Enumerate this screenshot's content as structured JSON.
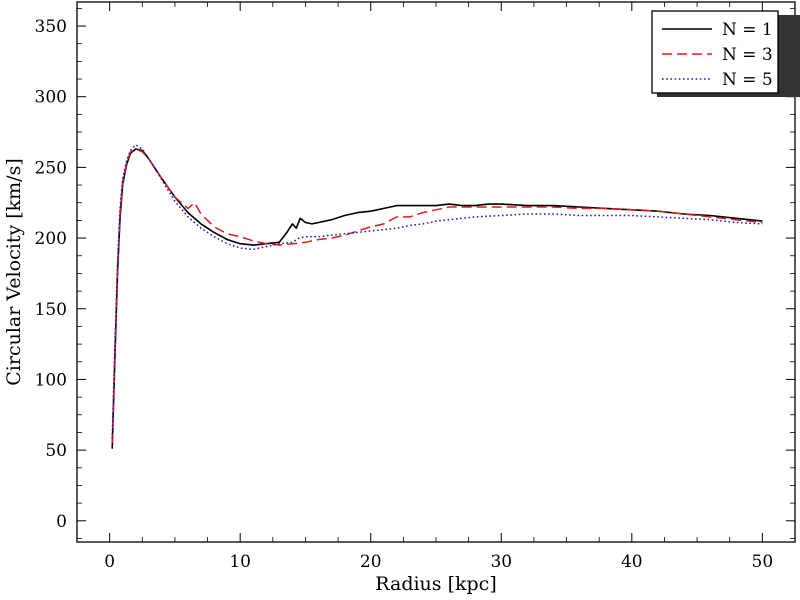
{
  "chart_data": {
    "type": "line",
    "title": "",
    "xlabel": "Radius [kpc]",
    "ylabel": "Circular Velocity [km/s]",
    "xlim": [
      -2.5,
      52.5
    ],
    "ylim": [
      -15,
      367
    ],
    "xticks": [
      0,
      10,
      20,
      30,
      40,
      50
    ],
    "yticks": [
      0,
      50,
      100,
      150,
      200,
      250,
      300,
      350
    ],
    "grid": false,
    "legend_position": "top-right",
    "series": [
      {
        "name": "N = 1",
        "color": "#000000",
        "style": "solid",
        "x": [
          0.2,
          0.4,
          0.6,
          0.8,
          1.0,
          1.3,
          1.6,
          2.0,
          2.5,
          3.0,
          3.5,
          4.0,
          5.0,
          6.0,
          7.0,
          8.0,
          9.0,
          10.0,
          11.0,
          12.0,
          13.0,
          13.5,
          14.0,
          14.3,
          14.6,
          15.0,
          15.5,
          16.0,
          17.0,
          18.0,
          19.0,
          20.0,
          21.0,
          22.0,
          23.0,
          24.0,
          25.0,
          26.0,
          27.0,
          28.0,
          29.0,
          30.0,
          32.0,
          34.0,
          36.0,
          38.0,
          40.0,
          42.0,
          44.0,
          46.0,
          48.0,
          50.0
        ],
        "y": [
          51,
          115,
          175,
          215,
          238,
          252,
          260,
          263,
          262,
          256,
          249,
          242,
          229,
          218,
          210,
          204,
          199,
          196,
          195,
          196,
          197,
          203,
          210,
          207,
          214,
          211,
          210,
          211,
          213,
          216,
          218,
          219,
          221,
          223,
          223,
          223,
          223,
          224,
          223,
          223,
          224,
          224,
          223,
          223,
          222,
          221,
          220,
          219,
          217,
          216,
          214,
          212
        ]
      },
      {
        "name": "N = 3",
        "color": "#e41a1a",
        "style": "dashed",
        "x": [
          0.2,
          0.4,
          0.6,
          0.8,
          1.0,
          1.3,
          1.6,
          2.0,
          2.5,
          3.0,
          3.5,
          4.0,
          5.0,
          6.0,
          6.5,
          7.0,
          8.0,
          9.0,
          10.0,
          11.0,
          12.0,
          13.0,
          14.0,
          15.0,
          16.0,
          17.0,
          18.0,
          19.0,
          20.0,
          21.0,
          22.0,
          23.0,
          24.0,
          25.0,
          26.0,
          27.0,
          28.0,
          30.0,
          32.0,
          34.0,
          36.0,
          38.0,
          40.0,
          42.0,
          44.0,
          46.0,
          48.0,
          50.0
        ],
        "y": [
          55,
          120,
          178,
          218,
          240,
          253,
          261,
          263,
          261,
          256,
          249,
          242,
          229,
          221,
          225,
          217,
          208,
          203,
          201,
          198,
          196,
          195,
          196,
          197,
          199,
          200,
          202,
          205,
          208,
          210,
          215,
          215,
          218,
          220,
          222,
          222,
          222,
          222,
          222,
          222,
          221,
          221,
          220,
          219,
          217,
          215,
          213,
          211
        ]
      },
      {
        "name": "N = 5",
        "color": "#1a1acc",
        "style": "dotted",
        "x": [
          0.2,
          0.4,
          0.6,
          0.8,
          1.0,
          1.3,
          1.6,
          2.0,
          2.5,
          3.0,
          3.5,
          4.0,
          5.0,
          6.0,
          7.0,
          8.0,
          9.0,
          10.0,
          11.0,
          12.0,
          13.0,
          14.0,
          14.5,
          15.0,
          16.0,
          17.0,
          18.0,
          19.0,
          20.0,
          21.0,
          22.0,
          23.0,
          24.0,
          25.0,
          26.0,
          27.0,
          28.0,
          30.0,
          32.0,
          34.0,
          36.0,
          38.0,
          40.0,
          42.0,
          44.0,
          46.0,
          48.0,
          50.0
        ],
        "y": [
          58,
          125,
          182,
          222,
          242,
          255,
          262,
          266,
          263,
          256,
          249,
          241,
          226,
          215,
          207,
          201,
          196,
          193,
          192,
          194,
          196,
          197,
          200,
          201,
          201,
          202,
          203,
          204,
          205,
          206,
          207,
          209,
          210,
          212,
          213,
          214,
          215,
          216,
          217,
          217,
          216,
          216,
          216,
          215,
          214,
          213,
          211,
          210
        ]
      }
    ]
  }
}
